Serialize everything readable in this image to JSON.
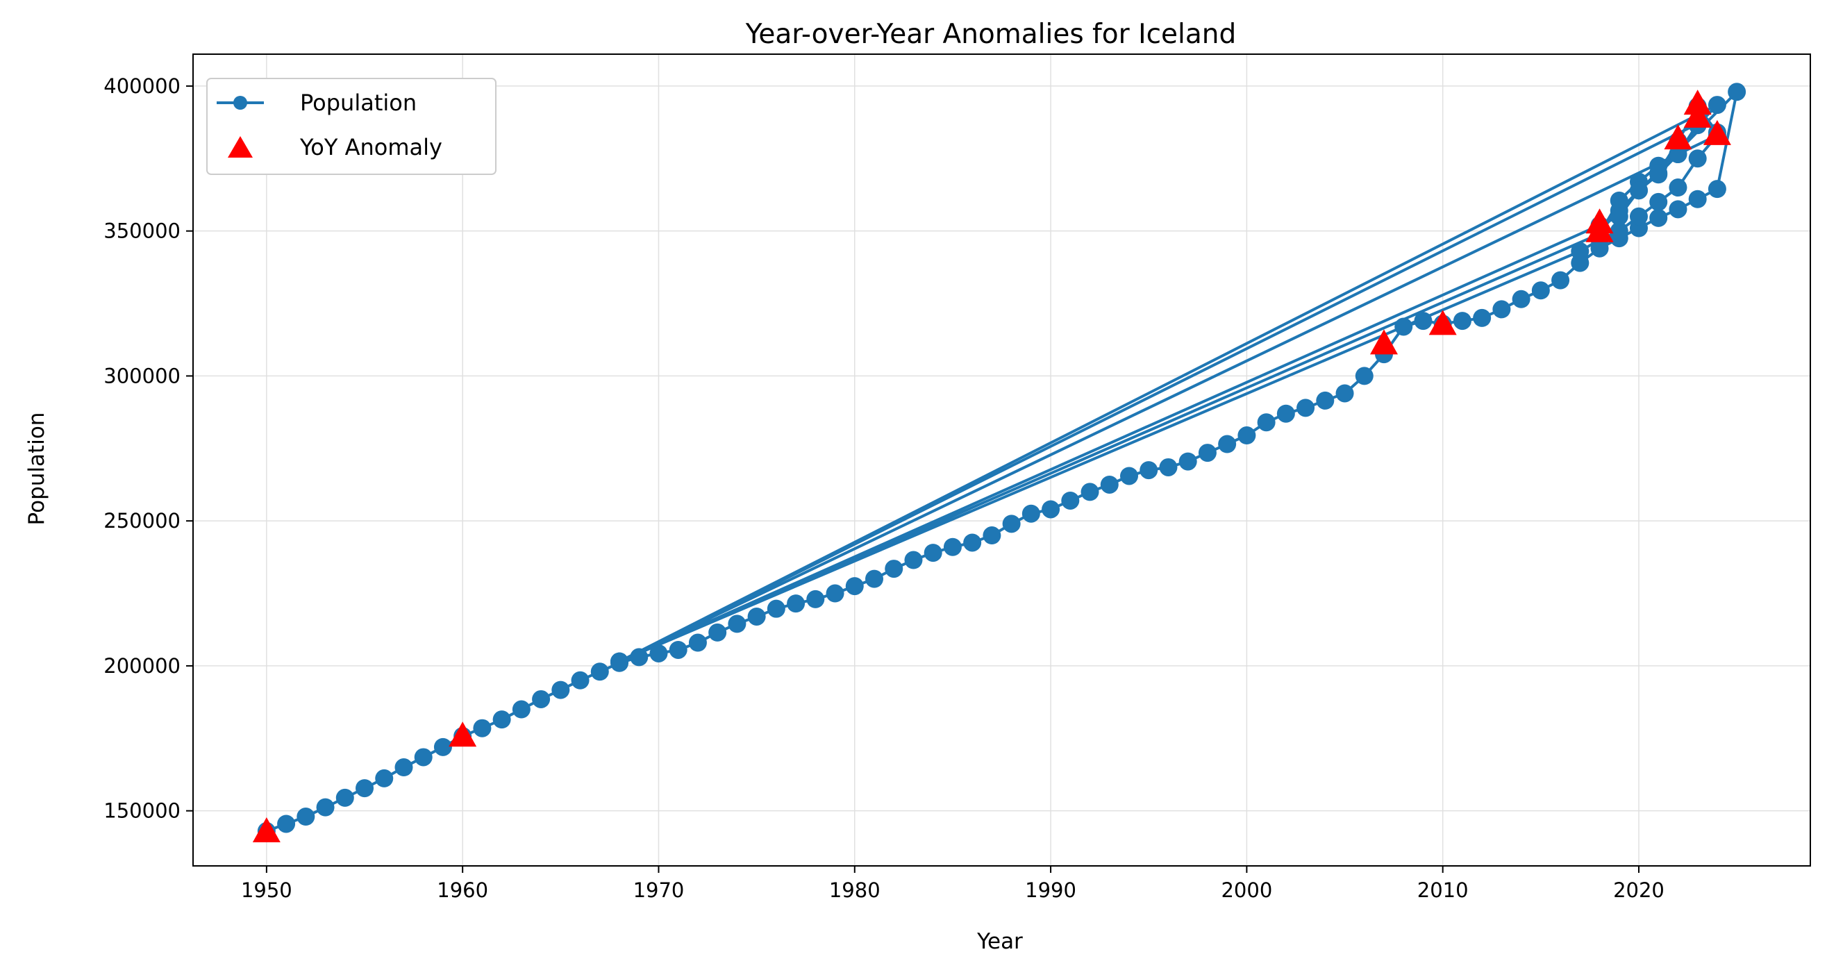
{
  "chart_data": {
    "type": "line",
    "title": "Year-over-Year Anomalies for Iceland",
    "xlabel": "Year",
    "ylabel": "Population",
    "xlim": [
      1946.25,
      2028.75
    ],
    "ylim": [
      131000,
      411000
    ],
    "xticks": [
      1950,
      1960,
      1970,
      1980,
      1990,
      2000,
      2010,
      2020
    ],
    "yticks": [
      150000,
      200000,
      250000,
      300000,
      350000,
      400000
    ],
    "grid": true,
    "legend_position": "top-left",
    "colors": {
      "population": "#1f77b4",
      "anomaly": "#ff0000",
      "grid": "#e0e0e0"
    },
    "series": [
      {
        "name": "Population",
        "kind": "line-marker",
        "x": [
          1950,
          1951,
          1952,
          1953,
          1954,
          1955,
          1956,
          1957,
          1958,
          1959,
          1960,
          1961,
          1962,
          1963,
          1964,
          1965,
          1966,
          1967,
          1968,
          1969,
          1970,
          1971,
          1972,
          1973,
          1974,
          1975,
          1976,
          1977,
          1978,
          1979,
          1980,
          1981,
          1982,
          1983,
          1984,
          1985,
          1986,
          1987,
          1988,
          1989,
          1990,
          1991,
          1992,
          1993,
          1994,
          1995,
          1996,
          1997,
          1998,
          1999,
          2000,
          2001,
          2002,
          2003,
          2004,
          2005,
          2006,
          2007,
          2008,
          2009,
          2010,
          2011,
          2012,
          2013,
          2014,
          2015,
          2016,
          2017,
          2018,
          2019,
          2020,
          2021,
          2022,
          2023,
          2024,
          2025,
          2018,
          2019,
          2020,
          2021,
          2022,
          2023,
          2024,
          1968,
          2018,
          2019,
          2020,
          2021,
          2022,
          2023,
          1968,
          2017,
          2018,
          2019,
          2020,
          2021,
          2022,
          2023,
          2024,
          1968,
          2018,
          2019,
          2020,
          2021,
          2022,
          2023,
          2024
        ],
        "values": [
          143000,
          145500,
          148000,
          151200,
          154500,
          157800,
          161200,
          165000,
          168500,
          172000,
          175800,
          178500,
          181500,
          185000,
          188500,
          191700,
          195000,
          198000,
          201000,
          203000,
          204300,
          205500,
          208000,
          211500,
          214500,
          217000,
          219700,
          221500,
          223000,
          225000,
          227500,
          230000,
          233500,
          236500,
          239000,
          241000,
          242500,
          245000,
          249000,
          252500,
          254000,
          257000,
          260000,
          262500,
          265500,
          267500,
          268500,
          270500,
          273500,
          276500,
          279500,
          284000,
          287000,
          289000,
          291500,
          294000,
          300000,
          307500,
          317000,
          319000,
          318000,
          319000,
          320000,
          323000,
          326500,
          329500,
          333000,
          339000,
          344000,
          347500,
          351000,
          354500,
          357500,
          361000,
          364500,
          398000,
          350000,
          357000,
          364000,
          369500,
          376500,
          386500,
          393500,
          201500,
          349000,
          360500,
          367000,
          372500,
          376500,
          387000,
          201500,
          343000,
          347000,
          350000,
          355000,
          360000,
          365000,
          375000,
          383000,
          201500,
          352000,
          355000,
          364000,
          370000,
          381000,
          393000,
          384000
        ]
      },
      {
        "name": "YoY Anomaly",
        "kind": "scatter-triangle",
        "x": [
          1950,
          1960,
          2007,
          2010,
          2018,
          2018,
          2022,
          2023,
          2023,
          2024
        ],
        "values": [
          142500,
          175500,
          310800,
          317500,
          349500,
          352500,
          381500,
          389000,
          393500,
          383000
        ]
      }
    ]
  }
}
